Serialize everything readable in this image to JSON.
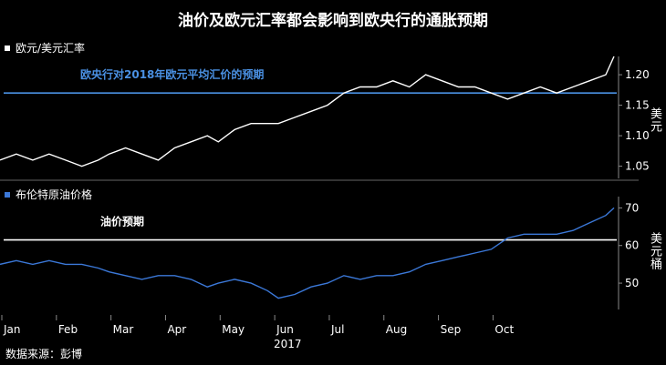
{
  "title": "油价及欧元汇率都会影响到欧央行的通胀预期",
  "source": "数据来源：彭博",
  "year_label": "2017",
  "colors": {
    "background": "#000000",
    "eur_line": "#ffffff",
    "oil_line": "#3b78d8",
    "ecb_ref": "#4a90e2",
    "oil_ref": "#ffffff"
  },
  "chart_data": [
    {
      "type": "line",
      "legend": "欧元/美元汇率",
      "unit_label": "美元",
      "reference_line": {
        "value": 1.17,
        "label": "欧央行对2018年欧元平均汇价的预期"
      },
      "ylim": [
        1.03,
        1.23
      ],
      "yticks": [
        1.05,
        1.1,
        1.15,
        1.2
      ],
      "xlim": [
        0,
        11.3
      ],
      "x": [
        0,
        0.3,
        0.6,
        0.9,
        1.2,
        1.5,
        1.8,
        2.0,
        2.3,
        2.6,
        2.9,
        3.2,
        3.5,
        3.8,
        4.0,
        4.3,
        4.6,
        4.9,
        5.1,
        5.4,
        5.7,
        6.0,
        6.3,
        6.6,
        6.9,
        7.2,
        7.5,
        7.8,
        8.1,
        8.4,
        8.7,
        9.0,
        9.3,
        9.6,
        9.9,
        10.2,
        10.5,
        10.8,
        11.1,
        11.25
      ],
      "y": [
        1.06,
        1.07,
        1.06,
        1.07,
        1.06,
        1.05,
        1.06,
        1.07,
        1.08,
        1.07,
        1.06,
        1.08,
        1.09,
        1.1,
        1.09,
        1.11,
        1.12,
        1.12,
        1.12,
        1.13,
        1.14,
        1.15,
        1.17,
        1.18,
        1.18,
        1.19,
        1.18,
        1.2,
        1.19,
        1.18,
        1.18,
        1.17,
        1.16,
        1.17,
        1.18,
        1.17,
        1.18,
        1.19,
        1.2,
        1.23
      ]
    },
    {
      "type": "line",
      "legend": "布伦特原油价格",
      "unit_label": "美元桶",
      "reference_line": {
        "value": 61.5,
        "label": "油价预期"
      },
      "ylim": [
        43,
        73
      ],
      "yticks": [
        50,
        60,
        70
      ],
      "xlim": [
        0,
        11.3
      ],
      "x": [
        0,
        0.3,
        0.6,
        0.9,
        1.2,
        1.5,
        1.8,
        2.0,
        2.3,
        2.6,
        2.9,
        3.2,
        3.5,
        3.8,
        4.0,
        4.3,
        4.6,
        4.9,
        5.1,
        5.4,
        5.7,
        6.0,
        6.3,
        6.6,
        6.9,
        7.2,
        7.5,
        7.8,
        8.1,
        8.4,
        8.7,
        9.0,
        9.3,
        9.6,
        9.9,
        10.2,
        10.5,
        10.8,
        11.1,
        11.25
      ],
      "y": [
        55,
        56,
        55,
        56,
        55,
        55,
        54,
        53,
        52,
        51,
        52,
        52,
        51,
        49,
        50,
        51,
        50,
        48,
        46,
        47,
        49,
        50,
        52,
        51,
        52,
        52,
        53,
        55,
        56,
        57,
        58,
        59,
        62,
        63,
        63,
        63,
        64,
        66,
        68,
        70
      ]
    }
  ],
  "x_tick_labels": [
    "Jan",
    "Feb",
    "Mar",
    "Apr",
    "May",
    "Jun",
    "Jul",
    "Aug",
    "Sep",
    "Oct"
  ]
}
